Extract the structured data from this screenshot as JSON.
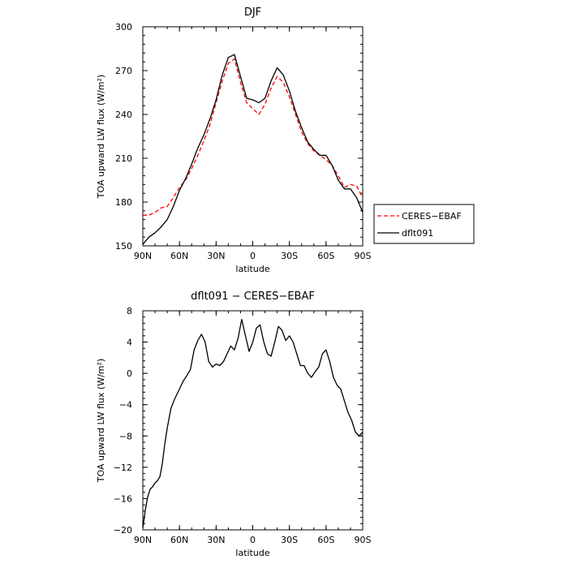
{
  "chart_data": [
    {
      "type": "line",
      "title": "DJF",
      "xlabel": "latitude",
      "ylabel": "TOA upward LW flux (W/m²)",
      "xlim": [
        90,
        -90
      ],
      "ylim": [
        150,
        300
      ],
      "x_ticks": [
        "90N",
        "60N",
        "30N",
        "0",
        "30S",
        "60S",
        "90S"
      ],
      "y_ticks": [
        "150",
        "180",
        "210",
        "240",
        "270",
        "300"
      ],
      "legend_position": "right",
      "grid": false,
      "series": [
        {
          "name": "CERES−EBAF",
          "color": "#ff0000",
          "style": "dashed",
          "x": [
            90,
            85,
            80,
            75,
            70,
            65,
            60,
            55,
            50,
            45,
            40,
            35,
            30,
            25,
            20,
            15,
            10,
            5,
            0,
            -5,
            -10,
            -15,
            -20,
            -25,
            -30,
            -35,
            -40,
            -45,
            -50,
            -55,
            -60,
            -65,
            -70,
            -75,
            -80,
            -85,
            -90
          ],
          "y": [
            171,
            171,
            173,
            176,
            177,
            183,
            190,
            195,
            203,
            212,
            222,
            233,
            248,
            263,
            275,
            278,
            262,
            248,
            244,
            240,
            247,
            258,
            266,
            262,
            252,
            240,
            228,
            220,
            215,
            212,
            209,
            205,
            198,
            190,
            192,
            191,
            183
          ]
        },
        {
          "name": "dflt091",
          "color": "#000000",
          "style": "solid",
          "x": [
            90,
            85,
            80,
            75,
            70,
            65,
            60,
            55,
            50,
            45,
            40,
            35,
            30,
            25,
            20,
            15,
            10,
            5,
            0,
            -5,
            -10,
            -15,
            -20,
            -25,
            -30,
            -35,
            -40,
            -45,
            -50,
            -55,
            -60,
            -65,
            -70,
            -75,
            -80,
            -85,
            -90
          ],
          "y": [
            151,
            156,
            159,
            163,
            168,
            177,
            188,
            196,
            206,
            217,
            226,
            237,
            250,
            267,
            279,
            281,
            266,
            251,
            250,
            248,
            251,
            263,
            272,
            267,
            256,
            242,
            231,
            221,
            216,
            212,
            212,
            205,
            195,
            189,
            189,
            183,
            173
          ]
        }
      ]
    },
    {
      "type": "line",
      "title": "dflt091 − CERES−EBAF",
      "xlabel": "latitude",
      "ylabel": "TOA upward LW flux (W/m²)",
      "xlim": [
        90,
        -90
      ],
      "ylim": [
        -20,
        8
      ],
      "x_ticks": [
        "90N",
        "60N",
        "30N",
        "0",
        "30S",
        "60S",
        "90S"
      ],
      "y_ticks": [
        "−20",
        "−16",
        "−12",
        "−8",
        "−4",
        "0",
        "4",
        "8"
      ],
      "grid": false,
      "series": [
        {
          "color": "#000000",
          "style": "solid",
          "x": [
            90,
            88,
            86,
            84,
            82,
            80,
            78,
            76,
            74,
            72,
            70,
            67,
            64,
            60,
            57,
            54,
            51,
            48,
            45,
            42,
            39,
            36,
            33,
            30,
            27,
            24,
            21,
            18,
            15,
            12,
            9,
            6,
            3,
            0,
            -3,
            -6,
            -9,
            -12,
            -15,
            -18,
            -21,
            -24,
            -27,
            -30,
            -33,
            -36,
            -39,
            -42,
            -45,
            -48,
            -51,
            -54,
            -57,
            -60,
            -63,
            -66,
            -69,
            -72,
            -75,
            -78,
            -81,
            -84,
            -87,
            -90
          ],
          "y": [
            -19.8,
            -17.5,
            -15.8,
            -14.8,
            -14.5,
            -14,
            -13.7,
            -13.2,
            -11.5,
            -9,
            -7,
            -4.5,
            -3.3,
            -2,
            -1,
            -0.3,
            0.5,
            3,
            4.2,
            5,
            4,
            1.5,
            0.8,
            1.2,
            1,
            1.5,
            2.5,
            3.5,
            3,
            4.5,
            6.9,
            4.8,
            2.8,
            4,
            5.8,
            6.2,
            4,
            2.5,
            2.2,
            4,
            6,
            5.5,
            4.2,
            4.8,
            4,
            2.5,
            1,
            1,
            0,
            -0.5,
            0.2,
            0.8,
            2.5,
            3,
            1.5,
            -0.5,
            -1.5,
            -2,
            -3.5,
            -5,
            -6,
            -7.5,
            -8,
            -7.5
          ]
        }
      ]
    }
  ]
}
